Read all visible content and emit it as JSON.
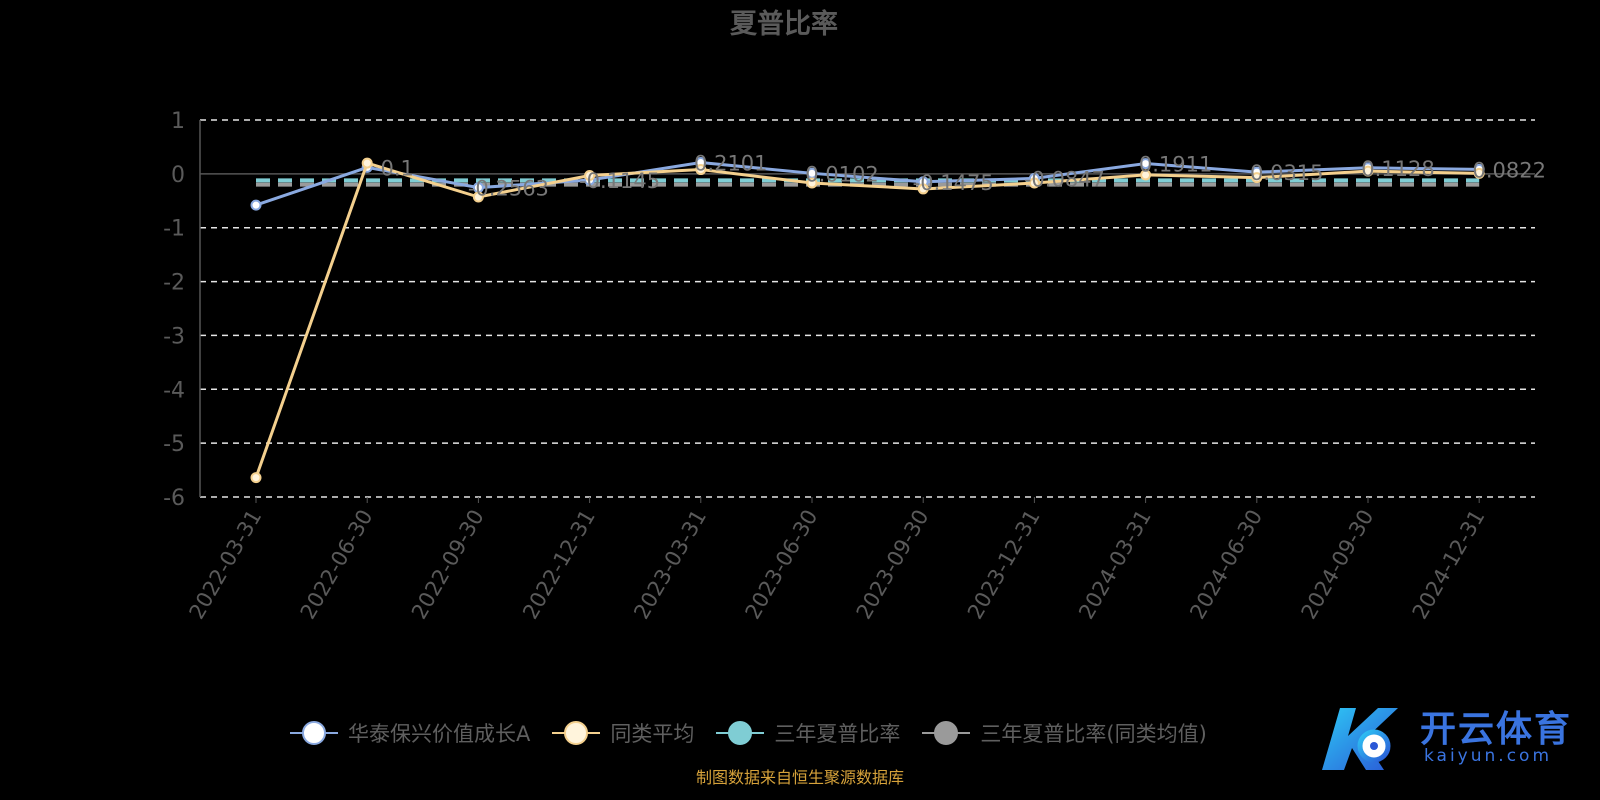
{
  "chart_data": {
    "type": "line",
    "title": "夏普比率",
    "categories": [
      "2022-03-31",
      "2022-06-30",
      "2022-09-30",
      "2022-12-31",
      "2023-03-31",
      "2023-06-30",
      "2023-09-30",
      "2023-12-31",
      "2024-03-31",
      "2024-06-30",
      "2024-09-30",
      "2024-12-31"
    ],
    "ylim": [
      -6,
      1
    ],
    "yticks": [
      "1",
      "0",
      "-1",
      "-2",
      "-3",
      "-4",
      "-5",
      "-6"
    ],
    "grid": true,
    "legend_position": "bottom",
    "series": [
      {
        "name": "华泰保兴价值成长A",
        "color": "#8aa9e0",
        "marker_fill": "#ffffff",
        "values": [
          -0.58,
          0.12,
          -0.2563,
          -0.1145,
          0.2101,
          0.0102,
          -0.1475,
          -0.0847,
          0.1911,
          0.0315,
          0.1128,
          0.0822
        ],
        "labels": [
          "",
          "0.1",
          "-0.2563",
          "-0.1145",
          "0.2101",
          "0.0102",
          "-0.1475",
          "-0.0847",
          "0.1911",
          "0.0315",
          "0.1128",
          "0.0822"
        ]
      },
      {
        "name": "同类平均",
        "color": "#f4d08e",
        "marker_fill": "#fff4dc",
        "values": [
          -5.64,
          0.2,
          -0.43,
          -0.03,
          0.08,
          -0.17,
          -0.28,
          -0.17,
          -0.02,
          -0.07,
          0.05,
          0.01
        ]
      },
      {
        "name": "三年夏普比率",
        "color": "#7fcdd4",
        "value": -0.12,
        "dashed": true
      },
      {
        "name": "三年夏普比率(同类均值)",
        "color": "#9a9a9a",
        "value": -0.2,
        "dashed": true
      }
    ]
  },
  "legend": [
    {
      "label": "华泰保兴价值成长A",
      "color": "#8aa9e0",
      "fill": "#ffffff"
    },
    {
      "label": "同类平均",
      "color": "#f4d08e",
      "fill": "#fff4dc"
    },
    {
      "label": "三年夏普比率",
      "color": "#7fcdd4",
      "fill": "#7fcdd4"
    },
    {
      "label": "三年夏普比率(同类均值)",
      "color": "#9a9a9a",
      "fill": "#9a9a9a"
    }
  ],
  "source": "制图数据来自恒生聚源数据库",
  "logo": {
    "text": "开云体育",
    "sub": "kaiyun.com"
  }
}
